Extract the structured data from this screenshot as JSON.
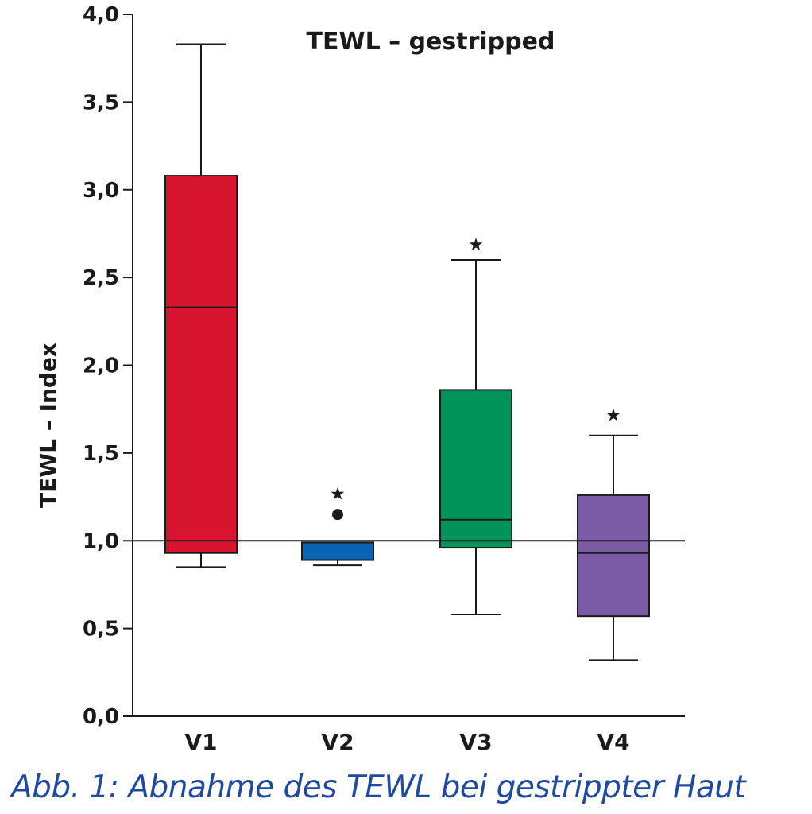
{
  "caption": "Abb. 1: Abnahme des TEWL bei gestrippter Haut",
  "chart_data": {
    "type": "boxplot",
    "title": "TEWL – gestripped",
    "xlabel": "",
    "ylabel": "TEWL – Index",
    "ylim": [
      0,
      4
    ],
    "yticks": [
      "0,0",
      "0,5",
      "1,0",
      "1,5",
      "2,0",
      "2,5",
      "3,0",
      "3,5",
      "4,0"
    ],
    "reference_line": 1.0,
    "grid": false,
    "categories": [
      "V1",
      "V2",
      "V3",
      "V4"
    ],
    "series": [
      {
        "category": "V1",
        "color": "#d8152f",
        "whisker_low": 0.85,
        "q1": 0.93,
        "median": 2.33,
        "q3": 3.08,
        "whisker_high": 3.83,
        "outliers": [],
        "extremes": []
      },
      {
        "category": "V2",
        "color": "#0a63b3",
        "whisker_low": 0.86,
        "q1": 0.89,
        "median": 0.99,
        "q3": 0.99,
        "whisker_high": 0.99,
        "outliers": [
          1.15
        ],
        "extremes": [
          1.27
        ]
      },
      {
        "category": "V3",
        "color": "#00935a",
        "whisker_low": 0.58,
        "q1": 0.96,
        "median": 1.12,
        "q3": 1.86,
        "whisker_high": 2.6,
        "outliers": [],
        "extremes": [
          2.69
        ]
      },
      {
        "category": "V4",
        "color": "#7b5ba6",
        "whisker_low": 0.32,
        "q1": 0.57,
        "median": 0.93,
        "q3": 1.26,
        "whisker_high": 1.6,
        "outliers": [],
        "extremes": [
          1.72
        ]
      }
    ]
  }
}
